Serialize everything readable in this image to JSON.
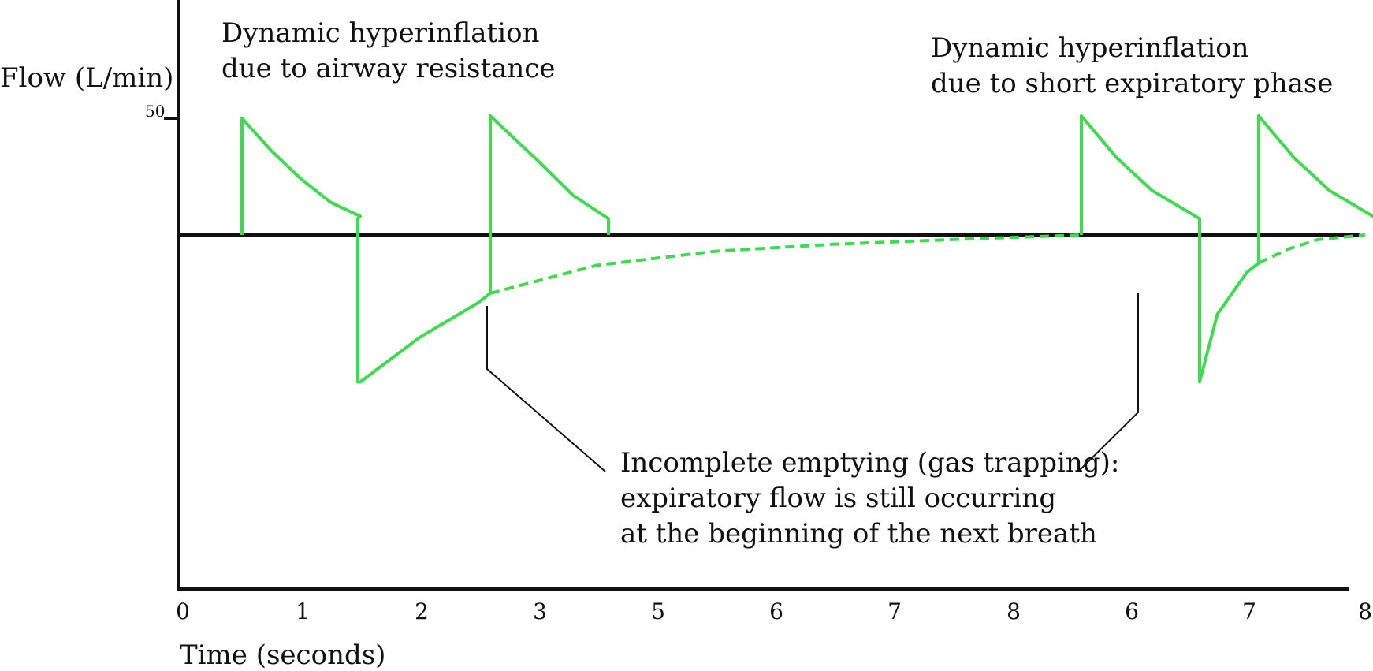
{
  "chart_data": {
    "type": "line",
    "ylabel": "Flow (L/min)",
    "xlabel": "Time (seconds)",
    "y_ticks": [
      {
        "value": 50,
        "label": "50"
      }
    ],
    "ylim": [
      -150,
      50
    ],
    "x_tick_labels": [
      "0",
      "1",
      "2",
      "3",
      "5",
      "6",
      "7",
      "8",
      "6",
      "7",
      "8"
    ],
    "series": [
      {
        "style": "solid",
        "points": [
          [
            0.5,
            0
          ],
          [
            0.5,
            50
          ],
          [
            0.75,
            36
          ],
          [
            1.0,
            24
          ],
          [
            1.25,
            14
          ],
          [
            1.5,
            8
          ],
          [
            1.48,
            7
          ],
          [
            1.48,
            -63
          ],
          [
            1.5,
            -63
          ],
          [
            2.0,
            -44
          ],
          [
            2.5,
            -29
          ],
          [
            2.6,
            -25
          ],
          [
            2.6,
            51
          ],
          [
            3.0,
            32
          ],
          [
            3.3,
            17
          ],
          [
            3.6,
            7
          ],
          [
            3.6,
            0
          ]
        ]
      },
      {
        "style": "dashed",
        "points": [
          [
            2.6,
            -25
          ],
          [
            3.5,
            -13
          ],
          [
            4.5,
            -7
          ],
          [
            5.5,
            -4
          ],
          [
            6.5,
            -2
          ],
          [
            7.6,
            0
          ]
        ]
      },
      {
        "style": "solid",
        "points": [
          [
            7.6,
            0
          ],
          [
            7.6,
            51
          ],
          [
            7.9,
            33
          ],
          [
            8.2,
            19
          ],
          [
            8.6,
            7
          ],
          [
            8.6,
            -63
          ],
          [
            8.75,
            -34
          ],
          [
            9.0,
            -16
          ],
          [
            9.1,
            -12
          ],
          [
            9.1,
            51
          ],
          [
            9.4,
            33
          ],
          [
            9.7,
            19
          ],
          [
            10.1,
            7
          ],
          [
            10.1,
            -1
          ]
        ]
      },
      {
        "style": "dashed",
        "points": [
          [
            9.1,
            -12
          ],
          [
            9.35,
            -6
          ],
          [
            9.6,
            -2
          ],
          [
            10.0,
            0
          ]
        ]
      }
    ],
    "annotations": [
      {
        "lines": [
          "Dynamic hyperinflation",
          "due to airway resistance"
        ]
      },
      {
        "lines": [
          "Dynamic hyperinflation",
          "due to short expiratory phase"
        ]
      },
      {
        "lines": [
          "Incomplete emptying (gas trapping):",
          "expiratory flow is still occurring",
          "at the beginning of the next breath"
        ]
      }
    ],
    "colors": {
      "waveform": "#3ddc4e",
      "axes": "#111111"
    }
  }
}
